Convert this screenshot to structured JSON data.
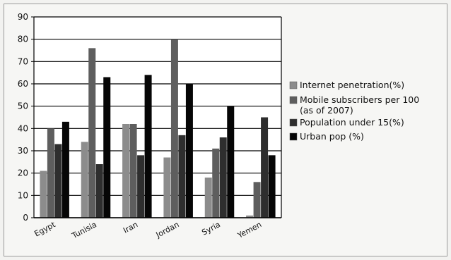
{
  "chart_data": {
    "type": "bar",
    "categories": [
      "Egypt",
      "Tunisia",
      "Iran",
      "Jordan",
      "Syria",
      "Yemen"
    ],
    "series": [
      {
        "name": "Internet penetration(%)",
        "values": [
          21,
          34,
          42,
          27,
          18,
          1
        ],
        "color": "#8c8c8c"
      },
      {
        "name": "Mobile subscribers per 100 (as of 2007)",
        "values": [
          40,
          76,
          42,
          80,
          31,
          16
        ],
        "color": "#5e5e5e"
      },
      {
        "name": "Population under 15(%)",
        "values": [
          33,
          24,
          28,
          37,
          36,
          45
        ],
        "color": "#2e2e2e"
      },
      {
        "name": "Urban pop (%)",
        "values": [
          43,
          63,
          64,
          60,
          50,
          28
        ],
        "color": "#060606"
      }
    ],
    "legend_lines": [
      [
        "Internet penetration(%)"
      ],
      [
        "Mobile subscribers per 100",
        "(as of 2007)"
      ],
      [
        "Population under 15(%)"
      ],
      [
        "Urban pop (%)"
      ]
    ],
    "yticks": [
      0,
      10,
      20,
      30,
      40,
      50,
      60,
      70,
      80,
      90
    ],
    "ylim": [
      0,
      90
    ],
    "grid": true,
    "legend_position": "right"
  }
}
